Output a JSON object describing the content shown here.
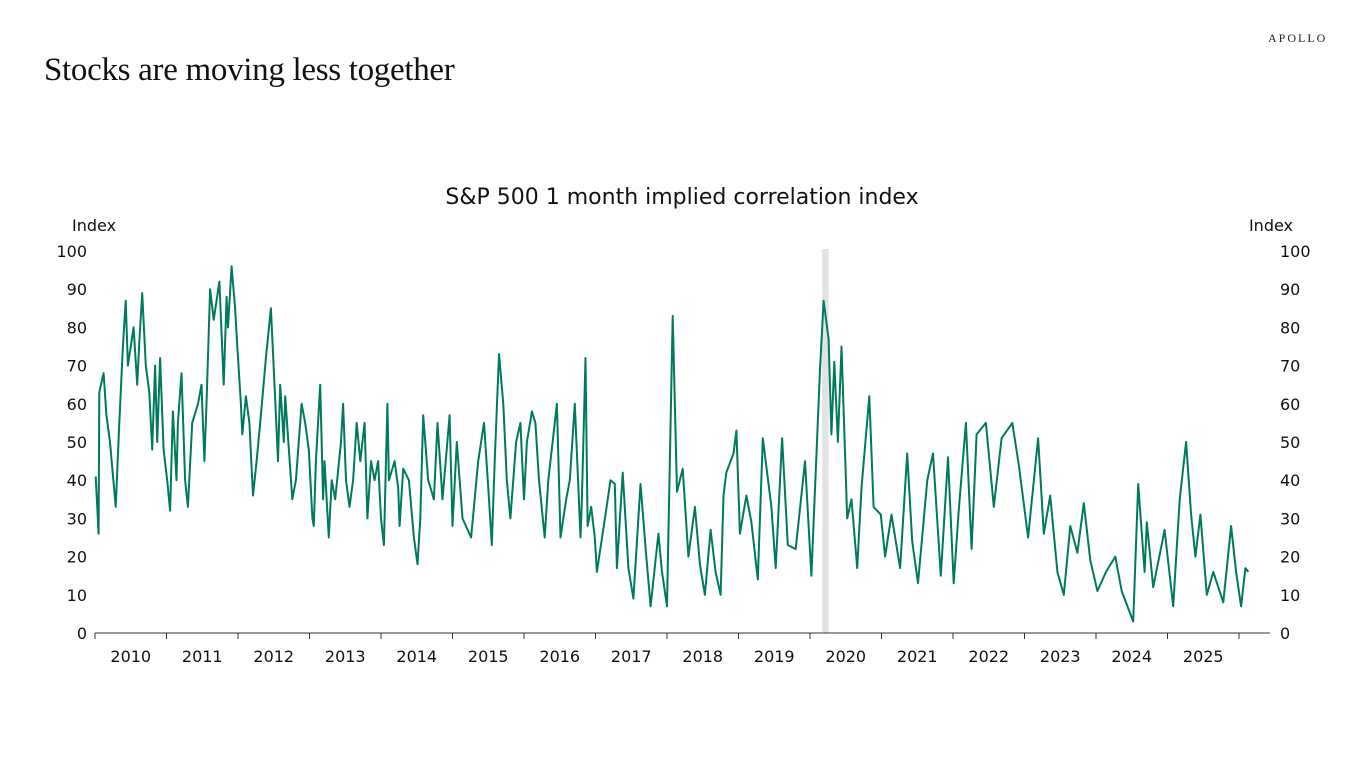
{
  "slide": {
    "title": "Stocks are moving less together",
    "logo": "APOLLO"
  },
  "chart_data": {
    "type": "line",
    "title": "S&P 500 1 month implied correlation index",
    "ylabel_left": "Index",
    "ylabel_right": "Index",
    "xlabel": "",
    "ylim": [
      0,
      100
    ],
    "yticks": [
      "0",
      "10",
      "20",
      "30",
      "40",
      "50",
      "60",
      "70",
      "80",
      "90",
      "100"
    ],
    "xlim": [
      2010,
      2026.4
    ],
    "xtick_labels": [
      "2010",
      "2011",
      "2012",
      "2013",
      "2014",
      "2015",
      "2016",
      "2017",
      "2018",
      "2019",
      "2020",
      "2021",
      "2022",
      "2023",
      "2024",
      "2025"
    ],
    "grid": false,
    "legend": "none",
    "line_color": "#007a5e",
    "recession_shading": {
      "start": 2020.17,
      "end": 2020.26,
      "color": "#e3e3e3"
    },
    "series": [
      {
        "points": [
          [
            2010.01,
            41
          ],
          [
            2010.05,
            26
          ],
          [
            2010.06,
            63
          ],
          [
            2010.12,
            68
          ],
          [
            2010.16,
            57
          ],
          [
            2010.21,
            50
          ],
          [
            2010.29,
            33
          ],
          [
            2010.34,
            55
          ],
          [
            2010.39,
            75
          ],
          [
            2010.43,
            87
          ],
          [
            2010.46,
            70
          ],
          [
            2010.54,
            80
          ],
          [
            2010.59,
            65
          ],
          [
            2010.62,
            76
          ],
          [
            2010.66,
            89
          ],
          [
            2010.71,
            70
          ],
          [
            2010.76,
            63
          ],
          [
            2010.8,
            48
          ],
          [
            2010.84,
            70
          ],
          [
            2010.87,
            50
          ],
          [
            2010.91,
            72
          ],
          [
            2010.96,
            48
          ],
          [
            2011.01,
            40
          ],
          [
            2011.05,
            32
          ],
          [
            2011.09,
            58
          ],
          [
            2011.14,
            40
          ],
          [
            2011.16,
            55
          ],
          [
            2011.21,
            68
          ],
          [
            2011.26,
            40
          ],
          [
            2011.3,
            33
          ],
          [
            2011.36,
            55
          ],
          [
            2011.44,
            60
          ],
          [
            2011.49,
            65
          ],
          [
            2011.53,
            45
          ],
          [
            2011.56,
            60
          ],
          [
            2011.61,
            90
          ],
          [
            2011.66,
            82
          ],
          [
            2011.74,
            92
          ],
          [
            2011.8,
            65
          ],
          [
            2011.84,
            88
          ],
          [
            2011.86,
            80
          ],
          [
            2011.91,
            96
          ],
          [
            2011.96,
            85
          ],
          [
            2011.99,
            75
          ],
          [
            2012.04,
            60
          ],
          [
            2012.06,
            52
          ],
          [
            2012.11,
            62
          ],
          [
            2012.16,
            55
          ],
          [
            2012.21,
            36
          ],
          [
            2012.26,
            45
          ],
          [
            2012.31,
            55
          ],
          [
            2012.39,
            72
          ],
          [
            2012.46,
            85
          ],
          [
            2012.51,
            65
          ],
          [
            2012.56,
            45
          ],
          [
            2012.59,
            65
          ],
          [
            2012.64,
            50
          ],
          [
            2012.66,
            62
          ],
          [
            2012.76,
            35
          ],
          [
            2012.81,
            40
          ],
          [
            2012.89,
            60
          ],
          [
            2012.94,
            55
          ],
          [
            2012.99,
            48
          ],
          [
            2013.04,
            30
          ],
          [
            2013.06,
            28
          ],
          [
            2013.09,
            45
          ],
          [
            2013.15,
            65
          ],
          [
            2013.19,
            35
          ],
          [
            2013.21,
            45
          ],
          [
            2013.27,
            25
          ],
          [
            2013.31,
            40
          ],
          [
            2013.36,
            35
          ],
          [
            2013.44,
            50
          ],
          [
            2013.47,
            60
          ],
          [
            2013.51,
            40
          ],
          [
            2013.56,
            33
          ],
          [
            2013.61,
            40
          ],
          [
            2013.66,
            55
          ],
          [
            2013.71,
            45
          ],
          [
            2013.77,
            55
          ],
          [
            2013.81,
            30
          ],
          [
            2013.86,
            45
          ],
          [
            2013.91,
            40
          ],
          [
            2013.96,
            45
          ],
          [
            2014.0,
            30
          ],
          [
            2014.04,
            23
          ],
          [
            2014.09,
            60
          ],
          [
            2014.11,
            40
          ],
          [
            2014.19,
            45
          ],
          [
            2014.24,
            38
          ],
          [
            2014.26,
            28
          ],
          [
            2014.31,
            43
          ],
          [
            2014.39,
            40
          ],
          [
            2014.46,
            25
          ],
          [
            2014.51,
            18
          ],
          [
            2014.55,
            30
          ],
          [
            2014.59,
            57
          ],
          [
            2014.66,
            40
          ],
          [
            2014.74,
            35
          ],
          [
            2014.79,
            55
          ],
          [
            2014.86,
            35
          ],
          [
            2014.96,
            57
          ],
          [
            2015.0,
            28
          ],
          [
            2015.06,
            50
          ],
          [
            2015.14,
            30
          ],
          [
            2015.26,
            25
          ],
          [
            2015.36,
            45
          ],
          [
            2015.44,
            55
          ],
          [
            2015.51,
            35
          ],
          [
            2015.55,
            23
          ],
          [
            2015.59,
            45
          ],
          [
            2015.65,
            73
          ],
          [
            2015.71,
            60
          ],
          [
            2015.76,
            40
          ],
          [
            2015.81,
            30
          ],
          [
            2015.89,
            50
          ],
          [
            2015.95,
            55
          ],
          [
            2016.0,
            35
          ],
          [
            2016.04,
            50
          ],
          [
            2016.11,
            58
          ],
          [
            2016.16,
            55
          ],
          [
            2016.21,
            40
          ],
          [
            2016.29,
            25
          ],
          [
            2016.34,
            40
          ],
          [
            2016.46,
            60
          ],
          [
            2016.51,
            25
          ],
          [
            2016.59,
            35
          ],
          [
            2016.64,
            40
          ],
          [
            2016.71,
            60
          ],
          [
            2016.79,
            25
          ],
          [
            2016.81,
            35
          ],
          [
            2016.86,
            72
          ],
          [
            2016.89,
            28
          ],
          [
            2016.94,
            33
          ],
          [
            2016.99,
            25
          ],
          [
            2017.02,
            16
          ],
          [
            2017.14,
            31
          ],
          [
            2017.21,
            40
          ],
          [
            2017.27,
            39
          ],
          [
            2017.3,
            17
          ],
          [
            2017.38,
            42
          ],
          [
            2017.46,
            17
          ],
          [
            2017.53,
            9
          ],
          [
            2017.63,
            39
          ],
          [
            2017.71,
            20
          ],
          [
            2017.77,
            7
          ],
          [
            2017.88,
            26
          ],
          [
            2017.93,
            16
          ],
          [
            2018.0,
            7
          ],
          [
            2018.08,
            83
          ],
          [
            2018.14,
            37
          ],
          [
            2018.22,
            43
          ],
          [
            2018.3,
            20
          ],
          [
            2018.39,
            33
          ],
          [
            2018.46,
            18
          ],
          [
            2018.53,
            10
          ],
          [
            2018.61,
            27
          ],
          [
            2018.68,
            16
          ],
          [
            2018.75,
            10
          ],
          [
            2018.79,
            36
          ],
          [
            2018.83,
            42
          ],
          [
            2018.93,
            47
          ],
          [
            2018.97,
            53
          ],
          [
            2019.02,
            26
          ],
          [
            2019.11,
            36
          ],
          [
            2019.18,
            29
          ],
          [
            2019.27,
            14
          ],
          [
            2019.34,
            51
          ],
          [
            2019.46,
            33
          ],
          [
            2019.52,
            17
          ],
          [
            2019.61,
            51
          ],
          [
            2019.69,
            23
          ],
          [
            2019.8,
            22
          ],
          [
            2019.93,
            45
          ],
          [
            2020.02,
            15
          ],
          [
            2020.14,
            69
          ],
          [
            2020.19,
            87
          ],
          [
            2020.26,
            77
          ],
          [
            2020.3,
            52
          ],
          [
            2020.34,
            71
          ],
          [
            2020.39,
            50
          ],
          [
            2020.44,
            75
          ],
          [
            2020.52,
            30
          ],
          [
            2020.58,
            35
          ],
          [
            2020.66,
            17
          ],
          [
            2020.72,
            38
          ],
          [
            2020.83,
            62
          ],
          [
            2020.89,
            33
          ],
          [
            2020.99,
            31
          ],
          [
            2021.05,
            20
          ],
          [
            2021.14,
            31
          ],
          [
            2021.26,
            17
          ],
          [
            2021.36,
            47
          ],
          [
            2021.43,
            24
          ],
          [
            2021.51,
            13
          ],
          [
            2021.64,
            40
          ],
          [
            2021.72,
            47
          ],
          [
            2021.83,
            15
          ],
          [
            2021.93,
            46
          ],
          [
            2022.01,
            13
          ],
          [
            2022.08,
            32
          ],
          [
            2022.18,
            55
          ],
          [
            2022.26,
            22
          ],
          [
            2022.33,
            52
          ],
          [
            2022.46,
            55
          ],
          [
            2022.57,
            33
          ],
          [
            2022.68,
            51
          ],
          [
            2022.83,
            55
          ],
          [
            2022.92,
            44
          ],
          [
            2023.05,
            25
          ],
          [
            2023.19,
            51
          ],
          [
            2023.27,
            26
          ],
          [
            2023.36,
            36
          ],
          [
            2023.46,
            16
          ],
          [
            2023.55,
            10
          ],
          [
            2023.64,
            28
          ],
          [
            2023.74,
            21
          ],
          [
            2023.83,
            34
          ],
          [
            2023.92,
            19
          ],
          [
            2024.02,
            11
          ],
          [
            2024.14,
            16
          ],
          [
            2024.27,
            20
          ],
          [
            2024.36,
            11
          ],
          [
            2024.52,
            3
          ],
          [
            2024.59,
            39
          ],
          [
            2024.68,
            16
          ],
          [
            2024.71,
            29
          ],
          [
            2024.8,
            12
          ],
          [
            2024.96,
            27
          ],
          [
            2025.08,
            7
          ],
          [
            2025.17,
            35
          ],
          [
            2025.26,
            50
          ],
          [
            2025.33,
            31
          ],
          [
            2025.39,
            20
          ],
          [
            2025.46,
            31
          ],
          [
            2025.55,
            10
          ],
          [
            2025.64,
            16
          ],
          [
            2025.78,
            8
          ],
          [
            2025.89,
            28
          ],
          [
            2025.96,
            16
          ],
          [
            2026.03,
            7
          ],
          [
            2026.09,
            17
          ],
          [
            2026.13,
            16
          ]
        ]
      }
    ]
  }
}
